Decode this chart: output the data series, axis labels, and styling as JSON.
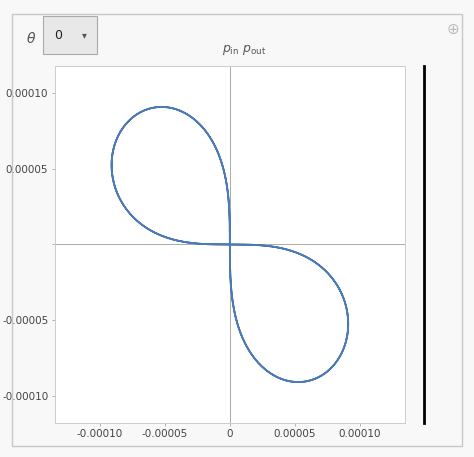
{
  "title_text": "$p_{\\mathrm{in}} p_{\\mathrm{out}}$",
  "theta_label": "θ",
  "theta_value": "0",
  "xlim": [
    -0.000135,
    0.000135
  ],
  "ylim": [
    -0.000118,
    0.000118
  ],
  "xticks": [
    -0.0001,
    -5e-05,
    0.0,
    5e-05,
    0.0001
  ],
  "yticks": [
    -0.0001,
    -5e-05,
    0.0,
    5e-05,
    0.0001
  ],
  "xtick_labels": [
    "-0.00010",
    "-0.00005",
    "0",
    "0.00005",
    "0.00010"
  ],
  "ytick_labels": [
    "-0.00010",
    "-0.00005",
    "",
    "0.00005",
    "0.00010"
  ],
  "curve_color": "#4d7ab5",
  "plot_bg": "#ffffff",
  "outer_bg": "#f8f8f8",
  "lemniscate_a": 0.000113,
  "lemniscate_rotation": -0.7854,
  "curve_linewidth": 1.3,
  "tick_fontsize": 7.5
}
